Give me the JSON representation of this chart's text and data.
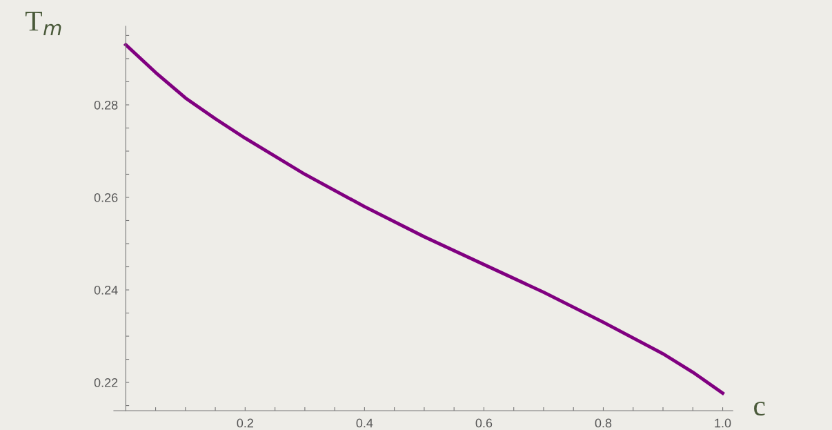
{
  "chart_data": {
    "type": "line",
    "xlabel": "c",
    "ylabel": "T$_{m}$",
    "x": [
      0.0,
      0.05,
      0.1,
      0.15,
      0.2,
      0.3,
      0.4,
      0.5,
      0.6,
      0.7,
      0.8,
      0.9,
      0.95,
      1.0
    ],
    "series": [
      {
        "color": "#800080",
        "values": [
          0.293,
          0.287,
          0.2815,
          0.277,
          0.2728,
          0.265,
          0.258,
          0.2515,
          0.2455,
          0.2395,
          0.233,
          0.2262,
          0.2222,
          0.2177
        ]
      }
    ],
    "xlim": [
      -0.02,
      1.017
    ],
    "ylim": [
      0.2139,
      0.297
    ],
    "xticks": [
      {
        "value": 0.05,
        "label": null
      },
      {
        "value": 0.1,
        "label": null
      },
      {
        "value": 0.15,
        "label": null
      },
      0.2,
      {
        "value": 0.25,
        "label": null
      },
      {
        "value": 0.3,
        "label": null
      },
      {
        "value": 0.35,
        "label": null
      },
      0.4,
      {
        "value": 0.45,
        "label": null
      },
      {
        "value": 0.5,
        "label": null
      },
      {
        "value": 0.55,
        "label": null
      },
      0.6,
      {
        "value": 0.65,
        "label": null
      },
      {
        "value": 0.7,
        "label": null
      },
      {
        "value": 0.75,
        "label": null
      },
      0.8,
      {
        "value": 0.85,
        "label": null
      },
      {
        "value": 0.9,
        "label": null
      },
      {
        "value": 0.95,
        "label": null
      },
      {
        "value": 1.0,
        "label": "1.0"
      }
    ],
    "yticks": [
      {
        "value": 0.215,
        "label": null
      },
      0.22,
      {
        "value": 0.225,
        "label": null
      },
      {
        "value": 0.23,
        "label": null
      },
      {
        "value": 0.235,
        "label": null
      },
      0.24,
      {
        "value": 0.245,
        "label": null
      },
      {
        "value": 0.25,
        "label": null
      },
      {
        "value": 0.255,
        "label": null
      },
      0.26,
      {
        "value": 0.265,
        "label": null
      },
      {
        "value": 0.27,
        "label": null
      },
      {
        "value": 0.275,
        "label": null
      },
      0.28,
      {
        "value": 0.285,
        "label": null
      },
      {
        "value": 0.29,
        "label": null
      },
      {
        "value": 0.295,
        "label": null
      }
    ],
    "grid": false,
    "marker": "none",
    "line_style": "solid"
  }
}
